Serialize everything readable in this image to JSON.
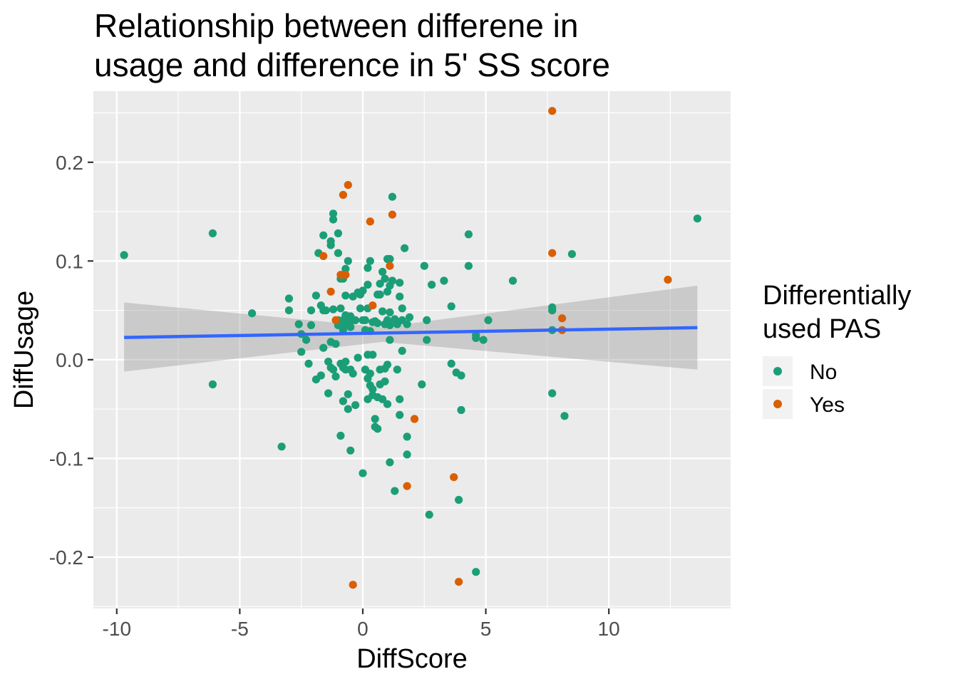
{
  "chart_data": {
    "type": "scatter",
    "title_lines": [
      "Relationship between differene in",
      "usage and difference in 5' SS score"
    ],
    "xlabel": "DiffScore",
    "ylabel": "DiffUsage",
    "xlim": [
      -10.95,
      14.95
    ],
    "ylim": [
      -0.252,
      0.272
    ],
    "x_ticks": [
      -10,
      -5,
      0,
      5,
      10
    ],
    "x_tick_labels": [
      "-10",
      "-5",
      "0",
      "5",
      "10"
    ],
    "y_ticks": [
      -0.2,
      -0.1,
      0.0,
      0.1,
      0.2
    ],
    "y_tick_labels": [
      "-0.2",
      "-0.1",
      "0.0",
      "0.1",
      "0.2"
    ],
    "grid": true,
    "legend": {
      "title_lines": [
        "Differentially",
        "used PAS"
      ],
      "placement": "right",
      "entries": [
        {
          "label": "No",
          "color": "#1b9e77"
        },
        {
          "label": "Yes",
          "color": "#d95f02"
        }
      ]
    },
    "series": [
      {
        "name": "No",
        "color": "#1b9e77",
        "points": [
          [
            -9.7,
            0.106
          ],
          [
            -6.1,
            0.128
          ],
          [
            -6.1,
            -0.025
          ],
          [
            -4.5,
            0.047
          ],
          [
            -3.3,
            -0.088
          ],
          [
            -3.0,
            0.062
          ],
          [
            -3.0,
            0.05
          ],
          [
            -2.6,
            0.036
          ],
          [
            -2.5,
            0.026
          ],
          [
            -2.5,
            0.008
          ],
          [
            -2.3,
            0.02
          ],
          [
            -2.2,
            -0.004
          ],
          [
            -2.1,
            0.05
          ],
          [
            -2.1,
            0.035
          ],
          [
            -1.9,
            0.065
          ],
          [
            -1.9,
            -0.02
          ],
          [
            -1.8,
            0.108
          ],
          [
            -1.7,
            0.055
          ],
          [
            -1.7,
            -0.016
          ],
          [
            -1.6,
            0.126
          ],
          [
            -1.6,
            0.05
          ],
          [
            -1.6,
            0.012
          ],
          [
            -1.5,
            0.05
          ],
          [
            -1.4,
            -0.002
          ],
          [
            -1.4,
            -0.034
          ],
          [
            -1.3,
            0.12
          ],
          [
            -1.3,
            0.116
          ],
          [
            -1.3,
            0.018
          ],
          [
            -1.3,
            -0.008
          ],
          [
            -1.2,
            0.148
          ],
          [
            -1.2,
            0.142
          ],
          [
            -1.2,
            0.051
          ],
          [
            -1.2,
            -0.01
          ],
          [
            -1.1,
            0.016
          ],
          [
            -1.1,
            -0.017
          ],
          [
            -1.0,
            0.128
          ],
          [
            -1.0,
            0.108
          ],
          [
            -1.0,
            0.04
          ],
          [
            -1.0,
            0.035
          ],
          [
            -0.9,
            -0.077
          ],
          [
            -0.9,
            0.082
          ],
          [
            -0.9,
            0.052
          ],
          [
            -0.9,
            -0.004
          ],
          [
            -0.8,
            0.082
          ],
          [
            -0.8,
            0.04
          ],
          [
            -0.8,
            0.03
          ],
          [
            -0.8,
            -0.042
          ],
          [
            -0.8,
            -0.008
          ],
          [
            -0.7,
            0.092
          ],
          [
            -0.7,
            0.065
          ],
          [
            -0.7,
            0.045
          ],
          [
            -0.7,
            0.036
          ],
          [
            -0.7,
            -0.002
          ],
          [
            -0.7,
            -0.01
          ],
          [
            -0.6,
            0.1
          ],
          [
            -0.6,
            0.04
          ],
          [
            -0.6,
            -0.035
          ],
          [
            -0.6,
            -0.05
          ],
          [
            -0.5,
            0.044
          ],
          [
            -0.5,
            0.033
          ],
          [
            -0.5,
            -0.01
          ],
          [
            -0.5,
            -0.092
          ],
          [
            -0.4,
            0.064
          ],
          [
            -0.4,
            0.04
          ],
          [
            -0.4,
            -0.014
          ],
          [
            -0.3,
            0.04
          ],
          [
            -0.3,
            -0.046
          ],
          [
            -0.2,
            0.068
          ],
          [
            -0.2,
            0.002
          ],
          [
            -0.1,
            0.066
          ],
          [
            -0.1,
            0.052
          ],
          [
            0.0,
            0.07
          ],
          [
            0.0,
            0.04
          ],
          [
            0.0,
            -0.115
          ],
          [
            0.1,
            0.03
          ],
          [
            0.1,
            -0.01
          ],
          [
            0.1,
            0.04
          ],
          [
            0.2,
            0.093
          ],
          [
            0.2,
            0.076
          ],
          [
            0.2,
            0.052
          ],
          [
            0.2,
            0.005
          ],
          [
            0.2,
            -0.019
          ],
          [
            0.2,
            -0.04
          ],
          [
            0.3,
            0.1
          ],
          [
            0.3,
            0.029
          ],
          [
            0.3,
            -0.014
          ],
          [
            0.3,
            -0.026
          ],
          [
            0.4,
            0.038
          ],
          [
            0.4,
            0.005
          ],
          [
            0.4,
            -0.03
          ],
          [
            0.4,
            -0.036
          ],
          [
            0.5,
            0.039
          ],
          [
            0.5,
            -0.06
          ],
          [
            0.5,
            -0.068
          ],
          [
            0.6,
            0.066
          ],
          [
            0.6,
            0.037
          ],
          [
            0.6,
            -0.07
          ],
          [
            0.6,
            -0.038
          ],
          [
            0.7,
            0.077
          ],
          [
            0.7,
            0.066
          ],
          [
            0.7,
            -0.01
          ],
          [
            0.7,
            -0.025
          ],
          [
            0.8,
            0.089
          ],
          [
            0.8,
            0.049
          ],
          [
            0.8,
            -0.04
          ],
          [
            0.9,
            0.082
          ],
          [
            0.9,
            0.036
          ],
          [
            0.9,
            -0.009
          ],
          [
            0.9,
            -0.022
          ],
          [
            1.0,
            0.102
          ],
          [
            1.0,
            0.069
          ],
          [
            1.0,
            0.04
          ],
          [
            1.0,
            -0.005
          ],
          [
            1.0,
            -0.045
          ],
          [
            1.1,
            0.102
          ],
          [
            1.1,
            0.075
          ],
          [
            1.1,
            0.048
          ],
          [
            1.1,
            0.035
          ],
          [
            1.1,
            0.02
          ],
          [
            1.1,
            -0.104
          ],
          [
            1.2,
            0.165
          ],
          [
            1.2,
            0.08
          ],
          [
            1.3,
            0.041
          ],
          [
            1.3,
            -0.133
          ],
          [
            1.4,
            0.036
          ],
          [
            1.4,
            -0.01
          ],
          [
            1.5,
            0.078
          ],
          [
            1.5,
            0.064
          ],
          [
            1.5,
            -0.04
          ],
          [
            1.5,
            -0.056
          ],
          [
            1.6,
            0.052
          ],
          [
            1.6,
            0.04
          ],
          [
            1.6,
            0.009
          ],
          [
            1.7,
            0.113
          ],
          [
            1.8,
            0.036
          ],
          [
            1.8,
            -0.096
          ],
          [
            1.8,
            -0.078
          ],
          [
            1.9,
            0.043
          ],
          [
            2.4,
            -0.025
          ],
          [
            2.5,
            0.095
          ],
          [
            2.6,
            0.04
          ],
          [
            2.6,
            0.02
          ],
          [
            2.7,
            -0.157
          ],
          [
            2.8,
            0.076
          ],
          [
            3.3,
            0.08
          ],
          [
            3.6,
            0.054
          ],
          [
            3.6,
            -0.004
          ],
          [
            3.8,
            -0.013
          ],
          [
            3.9,
            -0.142
          ],
          [
            4.0,
            -0.051
          ],
          [
            4.0,
            -0.016
          ],
          [
            4.3,
            0.127
          ],
          [
            4.3,
            0.095
          ],
          [
            4.6,
            0.022
          ],
          [
            4.6,
            0.025
          ],
          [
            4.6,
            -0.215
          ],
          [
            4.9,
            0.02
          ],
          [
            5.1,
            0.04
          ],
          [
            6.1,
            0.08
          ],
          [
            7.7,
            0.053
          ],
          [
            7.7,
            0.05
          ],
          [
            7.7,
            0.03
          ],
          [
            7.7,
            -0.034
          ],
          [
            8.2,
            -0.057
          ],
          [
            8.5,
            0.107
          ],
          [
            13.6,
            0.143
          ]
        ]
      },
      {
        "name": "Yes",
        "color": "#d95f02",
        "points": [
          [
            -1.6,
            0.105
          ],
          [
            -1.3,
            0.069
          ],
          [
            -1.1,
            0.04
          ],
          [
            -0.9,
            0.086
          ],
          [
            -0.8,
            0.167
          ],
          [
            -0.7,
            0.086
          ],
          [
            -0.6,
            0.177
          ],
          [
            -0.4,
            -0.228
          ],
          [
            0.3,
            0.14
          ],
          [
            0.4,
            0.055
          ],
          [
            1.1,
            0.095
          ],
          [
            1.2,
            0.147
          ],
          [
            1.8,
            -0.128
          ],
          [
            2.1,
            -0.06
          ],
          [
            3.7,
            -0.119
          ],
          [
            3.9,
            -0.225
          ],
          [
            7.7,
            0.252
          ],
          [
            7.7,
            0.108
          ],
          [
            8.1,
            0.042
          ],
          [
            8.1,
            0.03
          ],
          [
            12.4,
            0.081
          ]
        ]
      }
    ],
    "fit_line": {
      "method": "lm",
      "color": "#3366ff",
      "x": [
        -9.7,
        13.6
      ],
      "y": [
        0.0225,
        0.0325
      ]
    },
    "confidence_band": {
      "color": "#999999",
      "x": [
        -9.7,
        0.8,
        13.6
      ],
      "upper": [
        0.058,
        0.033,
        0.075
      ],
      "lower": [
        -0.012,
        0.018,
        -0.01
      ]
    }
  }
}
